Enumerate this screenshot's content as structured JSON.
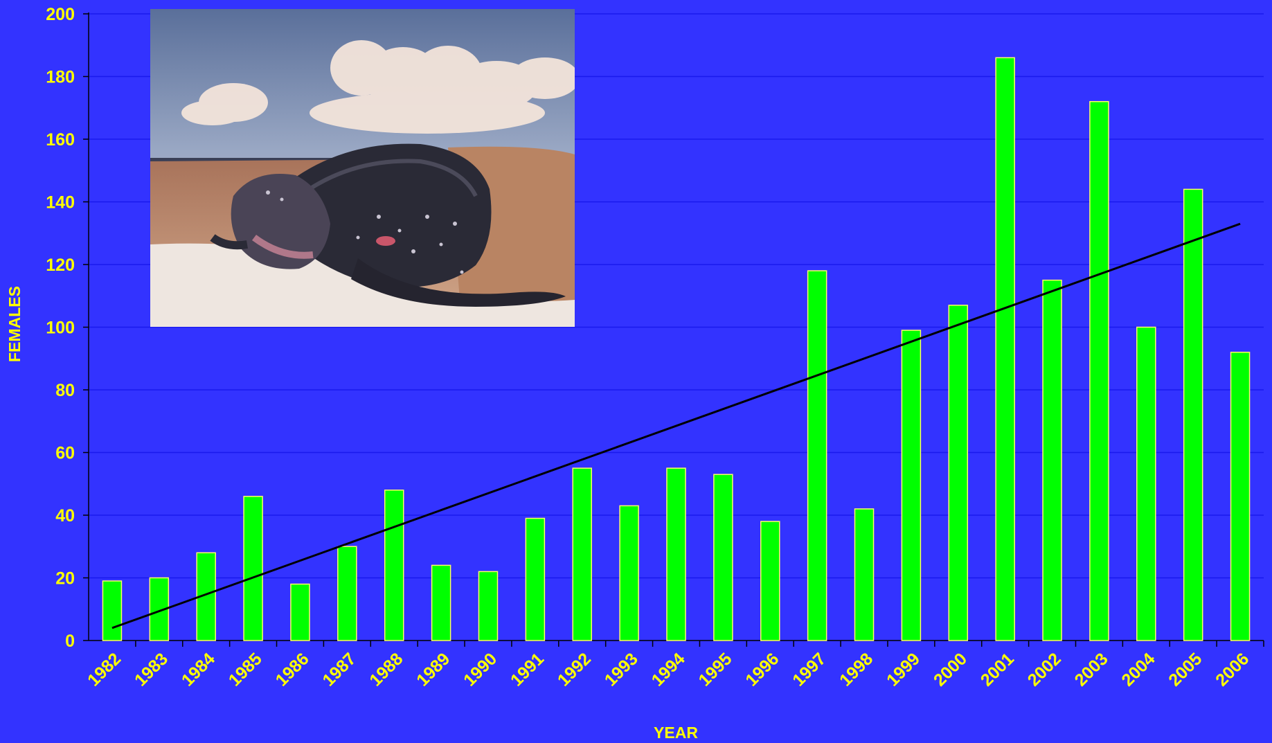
{
  "chart_data": {
    "type": "bar",
    "title": "",
    "xlabel": "YEAR",
    "ylabel": "FEMALES",
    "ylim": [
      0,
      200
    ],
    "yticks": [
      0,
      20,
      40,
      60,
      80,
      100,
      120,
      140,
      160,
      180,
      200
    ],
    "grid": true,
    "legend": "none",
    "categories": [
      "1982",
      "1983",
      "1984",
      "1985",
      "1986",
      "1987",
      "1988",
      "1989",
      "1990",
      "1991",
      "1992",
      "1993",
      "1994",
      "1995",
      "1996",
      "1997",
      "1998",
      "1999",
      "2000",
      "2001",
      "2002",
      "2003",
      "2004",
      "2005",
      "2006"
    ],
    "series": [
      {
        "values": [
          19,
          20,
          28,
          46,
          18,
          30,
          48,
          24,
          22,
          39,
          55,
          43,
          55,
          53,
          38,
          118,
          42,
          99,
          107,
          186,
          115,
          172,
          100,
          144,
          92
        ],
        "color": "#00ff00"
      }
    ],
    "trendline": {
      "type": "linear",
      "start": 4,
      "end": 133,
      "color": "#000000"
    },
    "inset_photo": "leatherback-sea-turtle-on-beach"
  },
  "colors": {
    "background": "#3333ff",
    "text": "#ffff00",
    "bar": "#00ff00",
    "gridline": "#1a1aee",
    "trend": "#000000"
  }
}
